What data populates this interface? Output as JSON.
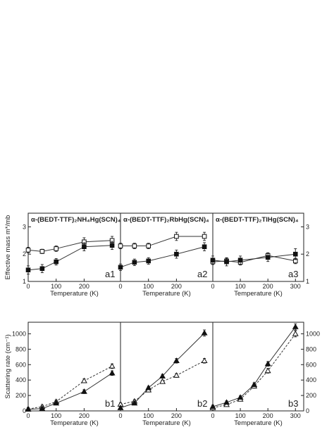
{
  "chart_data": [
    {
      "type": "scatter",
      "panel": "a1",
      "title": "α-(BEDT-TTF)₂NH₄Hg(SCN)₄",
      "xlabel": "Temperature (K)",
      "ylabel": "Effective mass m*/mb",
      "xlim": [
        0,
        330
      ],
      "ylim": [
        1,
        3.5
      ],
      "xticks": [
        0,
        100,
        200
      ],
      "yticks": [
        1,
        2,
        3
      ],
      "series": [
        {
          "marker": "open-square",
          "x": [
            0,
            50,
            100,
            200,
            300
          ],
          "y": [
            2.15,
            2.1,
            2.2,
            2.45,
            2.5
          ],
          "err": [
            0.1,
            0.08,
            0.1,
            0.15,
            0.15
          ]
        },
        {
          "marker": "filled-square",
          "x": [
            0,
            50,
            100,
            200,
            300
          ],
          "y": [
            1.42,
            1.47,
            1.72,
            2.27,
            2.32
          ],
          "err": [
            0.15,
            0.15,
            0.12,
            0.15,
            0.15
          ]
        }
      ]
    },
    {
      "type": "scatter",
      "panel": "a2",
      "title": "α-(BEDT-TTF)₂RbHg(SCN)₄",
      "xlabel": "Temperature (K)",
      "xlim": [
        0,
        330
      ],
      "ylim": [
        1,
        3.5
      ],
      "xticks": [
        0,
        100,
        200
      ],
      "series": [
        {
          "marker": "open-square",
          "x": [
            0,
            50,
            100,
            200,
            300
          ],
          "y": [
            2.3,
            2.3,
            2.3,
            2.65,
            2.65
          ],
          "err": [
            0.1,
            0.1,
            0.1,
            0.15,
            0.15
          ]
        },
        {
          "marker": "filled-square",
          "x": [
            0,
            50,
            100,
            200,
            300
          ],
          "y": [
            1.52,
            1.7,
            1.75,
            2.0,
            2.27
          ],
          "err": [
            0.12,
            0.12,
            0.12,
            0.15,
            0.15
          ]
        }
      ]
    },
    {
      "type": "scatter",
      "panel": "a3",
      "title": "α-(BEDT-TTF)₂TlHg(SCN)₄",
      "xlabel": "Temperature (K)",
      "xlim": [
        0,
        330
      ],
      "ylim": [
        1,
        3.5
      ],
      "xticks": [
        0,
        100,
        200,
        300
      ],
      "yticks": [
        1,
        2,
        3
      ],
      "series": [
        {
          "marker": "open-square",
          "x": [
            0,
            50,
            100,
            200,
            300
          ],
          "y": [
            1.72,
            1.75,
            1.7,
            1.95,
            1.75
          ],
          "err": [
            0.1,
            0.1,
            0.1,
            0.1,
            0.1
          ]
        },
        {
          "marker": "filled-square",
          "x": [
            0,
            50,
            100,
            200,
            300
          ],
          "y": [
            1.78,
            1.72,
            1.78,
            1.88,
            2.0
          ],
          "err": [
            0.15,
            0.15,
            0.15,
            0.15,
            0.2
          ]
        }
      ]
    },
    {
      "type": "scatter",
      "panel": "b1",
      "xlabel": "Temperature (K)",
      "ylabel": "Scattering rate (cm⁻¹)",
      "xlim": [
        0,
        330
      ],
      "ylim": [
        0,
        1150
      ],
      "xticks": [
        0,
        100,
        200
      ],
      "yticks": [
        0,
        200,
        400,
        600,
        800,
        1000
      ],
      "series": [
        {
          "marker": "open-triangle",
          "x": [
            0,
            50,
            100,
            200,
            300
          ],
          "y": [
            25,
            55,
            120,
            390,
            580
          ],
          "err": [
            20,
            20,
            20,
            25,
            30
          ]
        },
        {
          "marker": "filled-triangle",
          "x": [
            0,
            50,
            100,
            200,
            300
          ],
          "y": [
            20,
            30,
            100,
            250,
            490
          ],
          "err": [
            20,
            20,
            20,
            25,
            30
          ]
        }
      ]
    },
    {
      "type": "scatter",
      "panel": "b2",
      "xlabel": "Temperature (K)",
      "xlim": [
        0,
        330
      ],
      "ylim": [
        0,
        1150
      ],
      "xticks": [
        0,
        100,
        200
      ],
      "series": [
        {
          "marker": "open-triangle",
          "x": [
            0,
            50,
            100,
            150,
            200,
            300
          ],
          "y": [
            85,
            125,
            270,
            380,
            460,
            650
          ],
          "err": [
            20,
            20,
            20,
            20,
            25,
            30
          ]
        },
        {
          "marker": "filled-triangle",
          "x": [
            0,
            50,
            100,
            150,
            200,
            300
          ],
          "y": [
            40,
            100,
            300,
            450,
            650,
            1010
          ],
          "err": [
            20,
            20,
            20,
            25,
            30,
            40
          ]
        }
      ]
    },
    {
      "type": "scatter",
      "panel": "b3",
      "xlabel": "Temperature (K)",
      "xlim": [
        0,
        330
      ],
      "ylim": [
        0,
        1150
      ],
      "xticks": [
        0,
        100,
        200,
        300
      ],
      "yticks": [
        0,
        200,
        400,
        600,
        800,
        1000
      ],
      "series": [
        {
          "marker": "open-triangle",
          "x": [
            0,
            50,
            100,
            150,
            200,
            300
          ],
          "y": [
            40,
            80,
            150,
            320,
            520,
            1000
          ],
          "err": [
            20,
            20,
            20,
            25,
            30,
            40
          ]
        },
        {
          "marker": "filled-triangle",
          "x": [
            0,
            50,
            100,
            150,
            200,
            300
          ],
          "y": [
            55,
            110,
            175,
            340,
            610,
            1090
          ],
          "err": [
            20,
            20,
            20,
            25,
            30,
            40
          ]
        }
      ]
    }
  ]
}
